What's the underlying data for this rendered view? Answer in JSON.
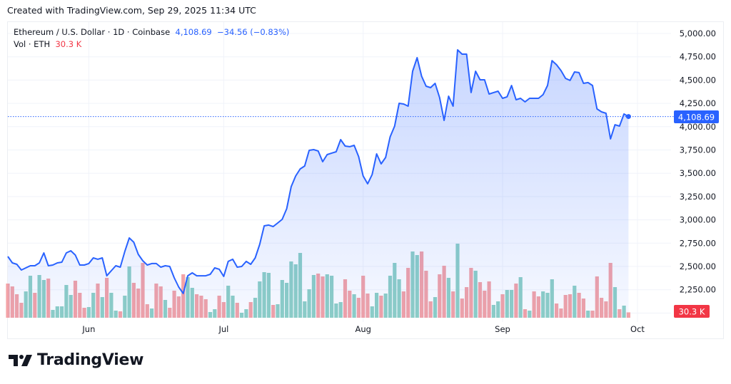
{
  "header": {
    "created": "Created with TradingView.com, Sep 29, 2025 11:34 UTC"
  },
  "legend": {
    "symbol": "Ethereum / U.S. Dollar · 1D · Coinbase",
    "last": "4,108.69",
    "change": "−34.56 (−0.83%)",
    "vol_label": "Vol · ETH",
    "vol_value": "30.3 K"
  },
  "logo": {
    "text": "TradingView"
  },
  "colors": {
    "line": "#2962ff",
    "up": "#8fd0c5",
    "down": "#f4a3a6",
    "price_badge": "#2962ff",
    "vol_badge": "#f23645"
  },
  "chart_data": {
    "type": "line",
    "title": "Ethereum / U.S. Dollar · 1D · Coinbase",
    "start_date": "2025-05-14",
    "end_date": "2025-09-29",
    "x_tick_labels": [
      {
        "label": "Jun",
        "index": 18
      },
      {
        "label": "Jul",
        "index": 48
      },
      {
        "label": "Aug",
        "index": 79
      },
      {
        "label": "Sep",
        "index": 110
      },
      {
        "label": "Oct",
        "index": 140
      }
    ],
    "y_tick_labels": [
      "5,000.00",
      "4,750.00",
      "4,500.00",
      "4,250.00",
      "4,000.00",
      "3,750.00",
      "3,500.00",
      "3,250.00",
      "3,000.00",
      "2,750.00",
      "2,500.00",
      "2,250.00"
    ],
    "y_ticks": [
      5000,
      4750,
      4500,
      4250,
      4000,
      3750,
      3500,
      3250,
      3000,
      2750,
      2500,
      2250
    ],
    "ylim": [
      2000,
      5000
    ],
    "last_price_label": "4,108.69",
    "last_volume_label": "30.3 K",
    "close": [
      2607,
      2538,
      2523,
      2462,
      2485,
      2508,
      2508,
      2538,
      2645,
      2508,
      2515,
      2538,
      2546,
      2645,
      2668,
      2622,
      2515,
      2515,
      2531,
      2592,
      2577,
      2592,
      2400,
      2454,
      2508,
      2492,
      2660,
      2806,
      2760,
      2630,
      2561,
      2515,
      2531,
      2531,
      2492,
      2508,
      2500,
      2378,
      2278,
      2210,
      2400,
      2431,
      2400,
      2400,
      2400,
      2416,
      2485,
      2470,
      2393,
      2554,
      2577,
      2492,
      2500,
      2554,
      2523,
      2592,
      2737,
      2936,
      2944,
      2928,
      2966,
      3005,
      3119,
      3356,
      3471,
      3547,
      3578,
      3746,
      3754,
      3739,
      3624,
      3700,
      3716,
      3731,
      3861,
      3792,
      3785,
      3800,
      3678,
      3471,
      3387,
      3486,
      3708,
      3601,
      3670,
      3891,
      4006,
      4251,
      4243,
      4220,
      4595,
      4740,
      4541,
      4434,
      4419,
      4465,
      4312,
      4067,
      4327,
      4220,
      4824,
      4778,
      4778,
      4366,
      4595,
      4503,
      4503,
      4350,
      4366,
      4381,
      4304,
      4320,
      4442,
      4289,
      4304,
      4266,
      4304,
      4304,
      4304,
      4343,
      4442,
      4709,
      4664,
      4602,
      4518,
      4496,
      4587,
      4580,
      4465,
      4473,
      4442,
      4190,
      4159,
      4144,
      3869,
      4021,
      4006,
      4136,
      4108.69
    ],
    "volume_k": [
      192,
      176,
      132,
      84,
      148,
      236,
      140,
      240,
      212,
      220,
      44,
      64,
      64,
      184,
      128,
      208,
      140,
      56,
      60,
      140,
      192,
      116,
      224,
      140,
      40,
      36,
      124,
      288,
      196,
      164,
      308,
      76,
      52,
      192,
      176,
      100,
      56,
      152,
      120,
      244,
      228,
      168,
      132,
      124,
      104,
      32,
      48,
      124,
      88,
      180,
      124,
      84,
      28,
      48,
      88,
      112,
      204,
      256,
      252,
      72,
      76,
      212,
      196,
      316,
      300,
      364,
      92,
      160,
      240,
      248,
      232,
      244,
      236,
      80,
      88,
      216,
      152,
      132,
      112,
      236,
      136,
      64,
      140,
      124,
      136,
      236,
      308,
      216,
      148,
      280,
      372,
      352,
      372,
      264,
      92,
      116,
      244,
      292,
      224,
      148,
      416,
      108,
      172,
      280,
      264,
      200,
      152,
      204,
      72,
      92,
      132,
      156,
      156,
      192,
      228,
      48,
      40,
      148,
      120,
      148,
      140,
      216,
      80,
      52,
      128,
      132,
      180,
      140,
      108,
      40,
      40,
      232,
      112,
      92,
      308,
      172,
      48,
      68,
      30.3
    ]
  }
}
